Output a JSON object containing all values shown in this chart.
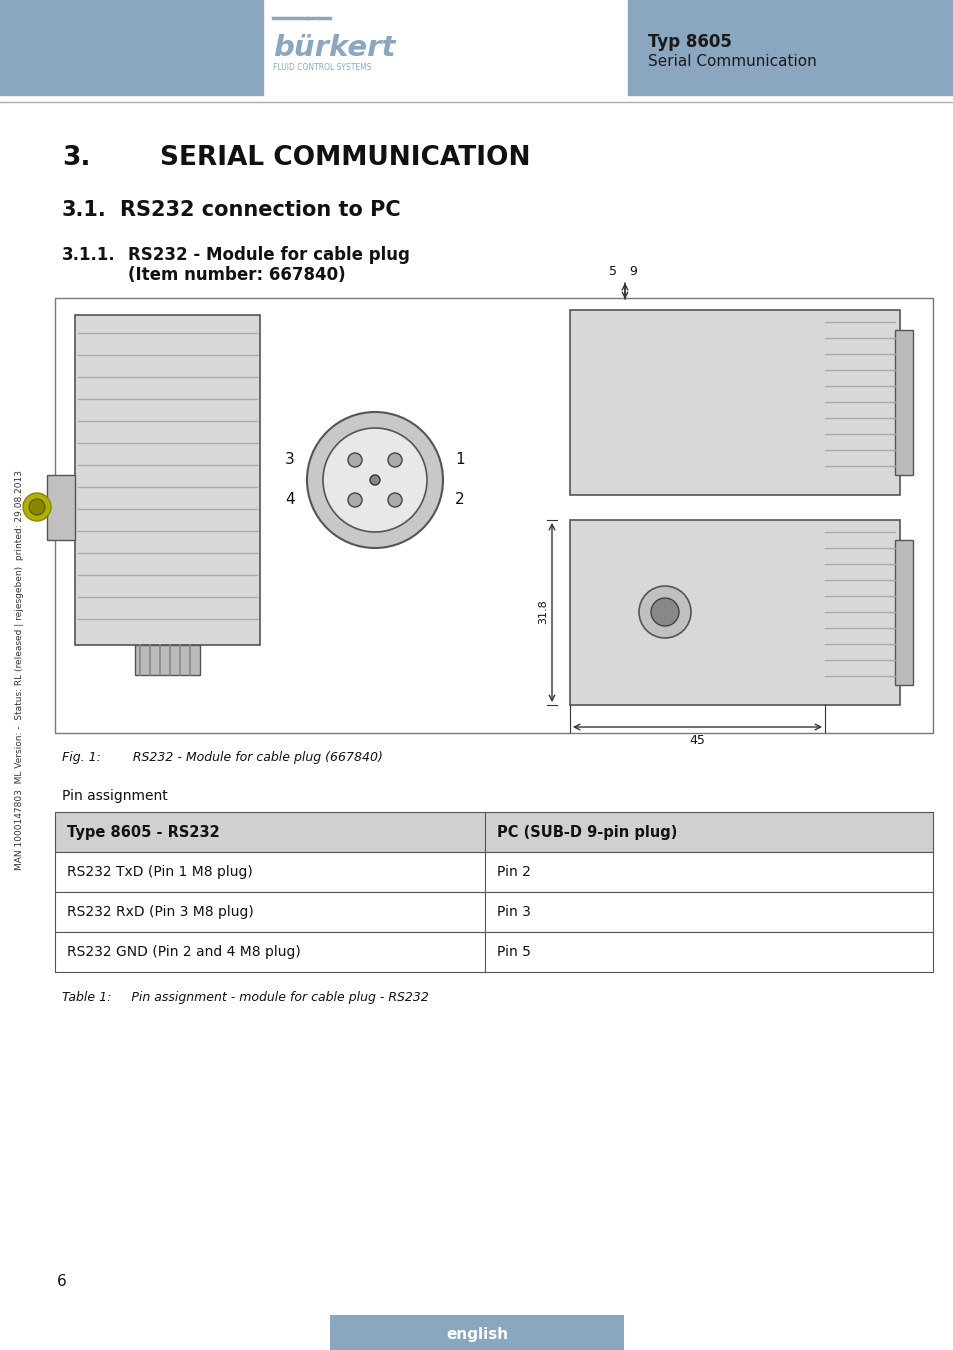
{
  "bg_color": "#ffffff",
  "header_bar_color": "#8ba7c0",
  "header_typ": "Typ 8605",
  "header_serial": "Serial Communication",
  "fig_caption": "Fig. 1:        RS232 - Module for cable plug (667840)",
  "pin_label": "Pin assignment",
  "table_header": [
    "Type 8605 - RS232",
    "PC (SUB-D 9-pin plug)"
  ],
  "table_rows": [
    [
      "RS232 TxD (Pin 1 M8 plug)",
      "Pin 2"
    ],
    [
      "RS232 RxD (Pin 3 M8 plug)",
      "Pin 3"
    ],
    [
      "RS232 GND (Pin 2 and 4 M8 plug)",
      "Pin 5"
    ]
  ],
  "table_caption": "Table 1:     Pin assignment - module for cable plug - RS232",
  "footer_text": "english",
  "page_number": "6",
  "side_text": "MAN 1000147803  ML Version: -  Status: RL (released | rejesgeben)  printed: 29.08.2013",
  "divider_color": "#aaaaaa",
  "table_header_bg": "#d0d0d0",
  "table_border_color": "#555555",
  "footer_bg": "#8ba7c0",
  "text_color": "#1a1a1a",
  "section_num": "3.",
  "section_title": "SERIAL COMMUNICATION",
  "sub_num": "3.1.",
  "sub_title": "RS232 connection to PC",
  "subsub_num": "3.1.1.",
  "subsub_title_line1": "RS232 - Module for cable plug",
  "subsub_title_line2": "(Item number: 667840)"
}
